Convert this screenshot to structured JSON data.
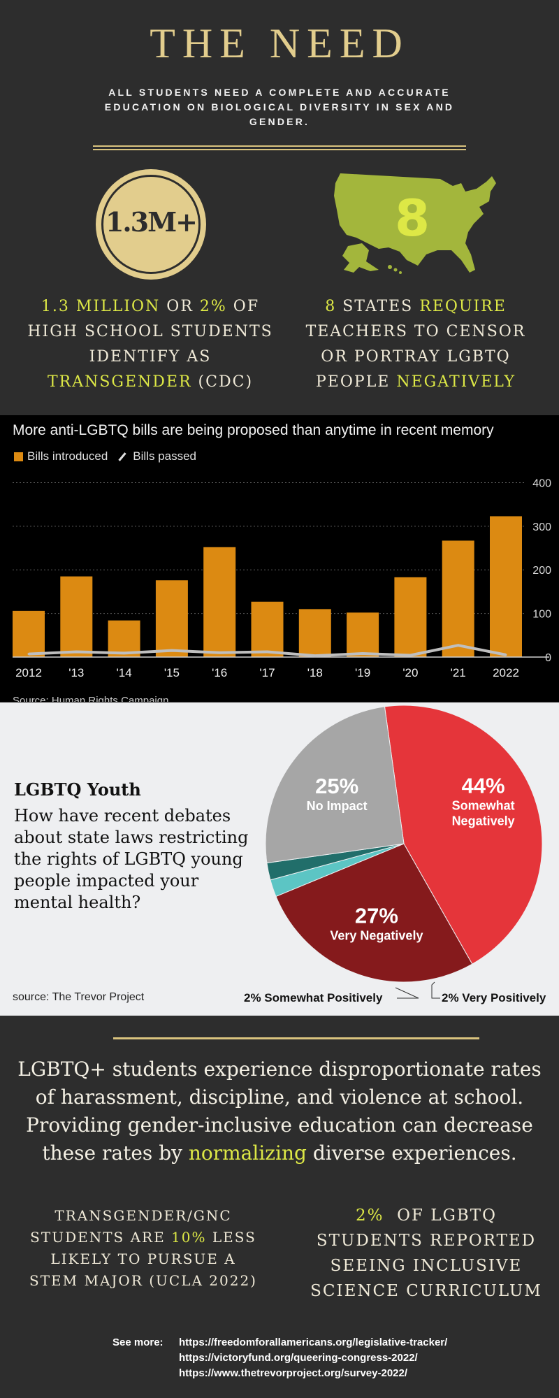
{
  "header": {
    "title": "THE NEED",
    "subtitle": "ALL STUDENTS NEED A COMPLETE AND ACCURATE EDUCATION ON  BIOLOGICAL DIVERSITY IN SEX AND GENDER."
  },
  "stat_left": {
    "badge": "1.3M+",
    "p1_hl": "1.3 MILLION",
    "p1_mid": " OR ",
    "p1_hl2": "2%",
    "p1_end": " OF",
    "line2": "HIGH SCHOOL STUDENTS",
    "line3": "IDENTIFY AS",
    "p4_hl": "TRANSGENDER",
    "p4_end": " (CDC)"
  },
  "stat_right": {
    "number": "8",
    "p1_hl": "8",
    "p1_mid": " STATES ",
    "p1_hl2": "REQUIRE",
    "line2": "TEACHERS TO CENSOR",
    "line3": "OR PORTRAY LGBTQ",
    "p4_start": "PEOPLE ",
    "p4_hl": "NEGATIVELY"
  },
  "chart_data": {
    "type": "bar",
    "title": "More anti-LGBTQ bills are being proposed than anytime in recent memory",
    "categories": [
      "2012",
      "'13",
      "'14",
      "'15",
      "'16",
      "'17",
      "'18",
      "'19",
      "'20",
      "'21",
      "2022"
    ],
    "series": [
      {
        "name": "Bills introduced",
        "type": "bar",
        "color": "#dc8a12",
        "values": [
          106,
          185,
          84,
          176,
          252,
          127,
          110,
          102,
          183,
          267,
          323
        ]
      },
      {
        "name": "Bills passed",
        "type": "line",
        "color": "#bfbfbf",
        "values": [
          7,
          12,
          9,
          15,
          10,
          12,
          3,
          8,
          4,
          27,
          5
        ]
      }
    ],
    "yticks": [
      0,
      100,
      200,
      300,
      400
    ],
    "ylim": [
      0,
      420
    ],
    "source": "Source: Human Rights Campaign"
  },
  "pie": {
    "heading": "LGBTQ Youth",
    "question": "How have recent debates about state laws restricting the rights of LGBTQ young people impacted your mental health?",
    "source": "source: The Trevor Project",
    "slices": [
      {
        "pct": "44%",
        "label": "Somewhat",
        "label2": "Negatively",
        "value": 44,
        "color": "#e5353a"
      },
      {
        "pct": "27%",
        "label": "Very Negatively",
        "label2": "",
        "value": 27,
        "color": "#851a1c"
      },
      {
        "pct": "2%",
        "label": "Very Positively",
        "label2": "",
        "value": 2,
        "color": "#5cc5c4"
      },
      {
        "pct": "2%",
        "label": "Somewhat Positively",
        "label2": "",
        "value": 2,
        "color": "#216e6a"
      },
      {
        "pct": "25%",
        "label": "No Impact",
        "label2": "",
        "value": 25,
        "color": "#a6a6a6"
      }
    ],
    "callout_left": "2% Somewhat Positively",
    "callout_right": "2% Very Positively"
  },
  "paragraph": {
    "text_start": "LGBTQ+ students experience disproportionate rates of harassment, discipline, and violence at school. Providing gender-inclusive education can decrease these rates by ",
    "text_hl": "normalizing",
    "text_end": " diverse experiences."
  },
  "bottom_left": {
    "line1": "TRANSGENDER/GNC",
    "l2_start": "STUDENTS ARE ",
    "l2_hl": "10%",
    "l2_end": " LESS",
    "line3": "LIKELY TO PURSUE A",
    "line4": "STEM MAJOR (UCLA 2022)"
  },
  "bottom_right": {
    "l1_hl": "2%",
    "l1_end": "  OF LGBTQ",
    "line2": "STUDENTS REPORTED",
    "line3": "SEEING INCLUSIVE",
    "line4": "SCIENCE CURRICULUM"
  },
  "see_more": {
    "label": "See more:",
    "links": [
      "https://freedomforallamericans.org/legislative-tracker/",
      "https://victoryfund.org/queering-congress-2022/",
      "https://www.thetrevorproject.org/survey-2022/"
    ]
  },
  "colors": {
    "accent_gold": "#e2cd8d",
    "highlight": "#dde846",
    "map_green": "#a3b63c"
  }
}
